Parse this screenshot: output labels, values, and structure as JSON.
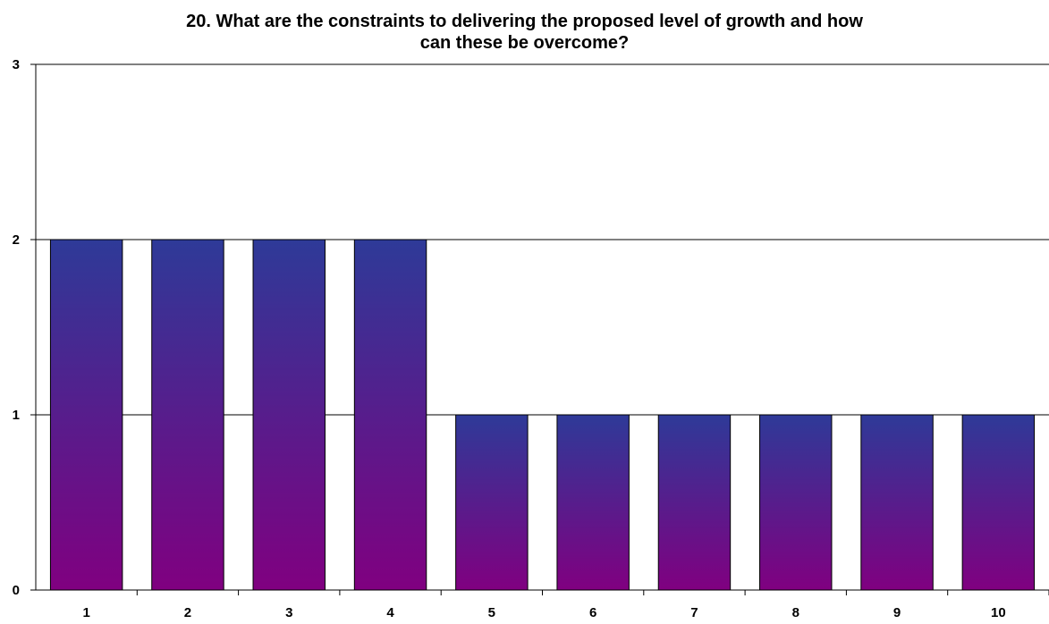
{
  "chart_data": {
    "type": "bar",
    "title_lines": [
      "20. What are the constraints to delivering the proposed level of growth and how",
      "can these be overcome?"
    ],
    "categories": [
      "1",
      "2",
      "3",
      "4",
      "5",
      "6",
      "7",
      "8",
      "9",
      "10"
    ],
    "values": [
      2,
      2,
      2,
      2,
      1,
      1,
      1,
      1,
      1,
      1
    ],
    "ylim": [
      0,
      3
    ],
    "yticks": [
      0,
      1,
      2,
      3
    ],
    "grid": true,
    "legend": "none",
    "colors": {
      "bar_top": "#2e3a98",
      "bar_bottom": "#800080",
      "grid": "#000000",
      "axis": "#000000"
    }
  }
}
